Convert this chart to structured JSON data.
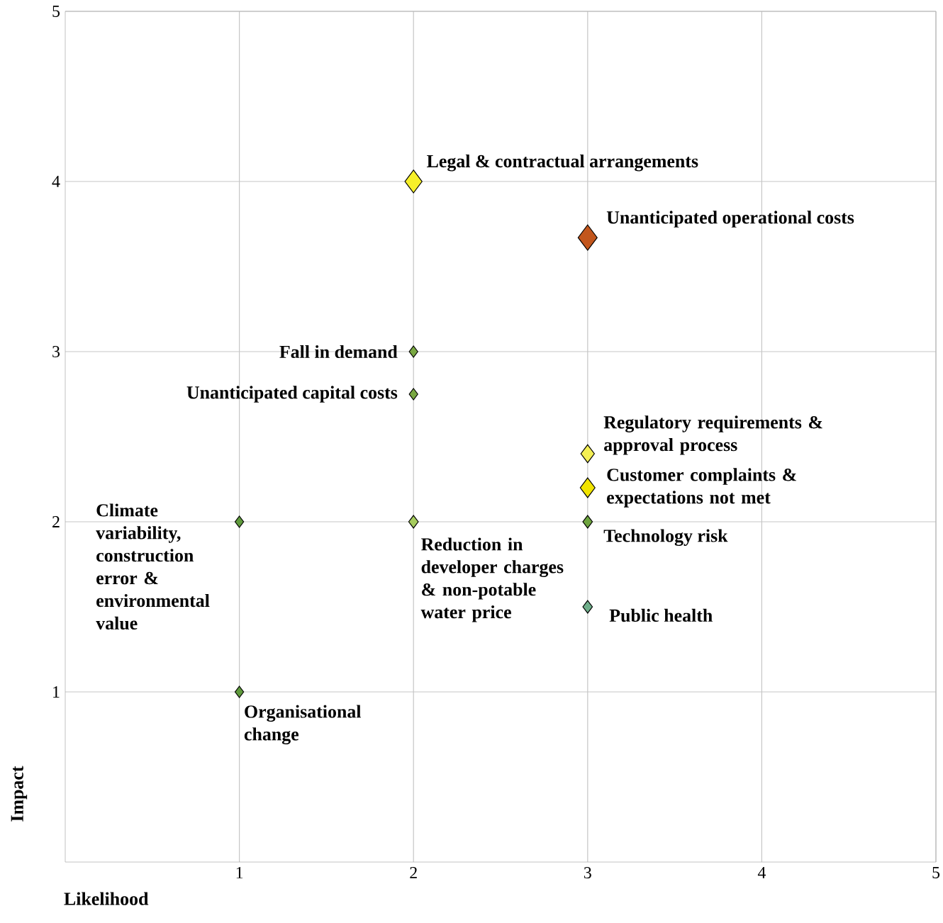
{
  "chart_data": {
    "type": "bubble",
    "xlabel": "Likelihood",
    "ylabel": "Impact",
    "x": [
      2,
      3,
      2,
      2,
      3,
      3,
      3,
      3,
      1,
      2,
      1
    ],
    "values": [
      4,
      3.67,
      3,
      2.75,
      2.4,
      2.2,
      2,
      1.5,
      2,
      2,
      1
    ],
    "sizes": [
      0.8,
      1,
      0.2,
      0.2,
      0.5,
      0.6,
      0.25,
      0.25,
      0.2,
      0.25,
      0.2
    ],
    "colors": [
      "#f7f02a",
      "#c2561d",
      "#79a842",
      "#79a842",
      "#f4ef55",
      "#f1e400",
      "#6ea43f",
      "#6fae8a",
      "#5f9a3c",
      "#a6cc5e",
      "#5f9a3c"
    ],
    "marker": "diamond",
    "grid": true,
    "xlim": [
      0,
      5
    ],
    "ylim": [
      0,
      5
    ],
    "xticks": [
      1,
      2,
      3,
      4,
      5
    ],
    "yticks": [
      1,
      2,
      3,
      4,
      5
    ],
    "annotations": [
      {
        "text": "Legal & contractual arrangements",
        "x": 2,
        "y": 4
      },
      {
        "text": "Unanticipated operational costs",
        "x": 3,
        "y": 3.67
      },
      {
        "text": "Fall in demand",
        "x": 2,
        "y": 3
      },
      {
        "text": "Unanticipated capital costs",
        "x": 2,
        "y": 2.75
      },
      {
        "text": "Regulatory requirements & approval process",
        "x": 3,
        "y": 2.4
      },
      {
        "text": "Customer complaints & expectations not met",
        "x": 3,
        "y": 2.2
      },
      {
        "text": "Technology risk",
        "x": 3,
        "y": 2
      },
      {
        "text": "Public health",
        "x": 3,
        "y": 1.5
      },
      {
        "text": "Climate variability, construction error & environmental value",
        "x": 1,
        "y": 2
      },
      {
        "text": "Reduction in developer charges & non-potable water price",
        "x": 2,
        "y": 2
      },
      {
        "text": "Organisational change",
        "x": 1,
        "y": 1
      }
    ]
  }
}
